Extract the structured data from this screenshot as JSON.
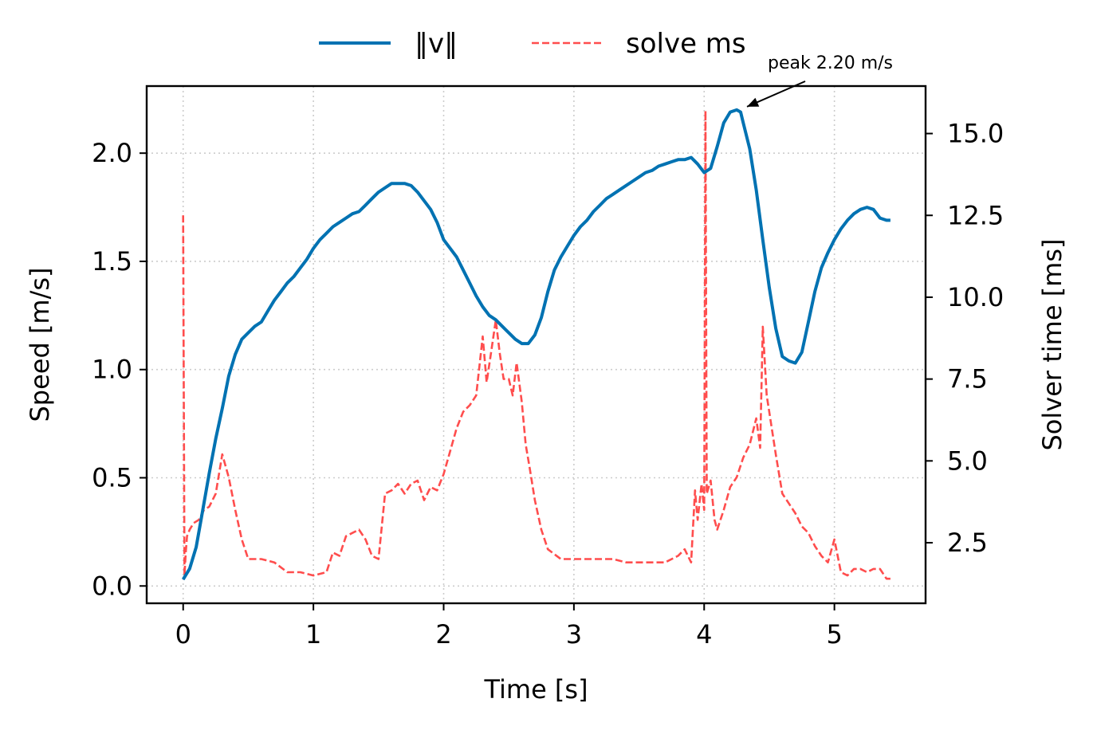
{
  "chart_data": {
    "type": "line",
    "xlabel": "Time [s]",
    "ylabel_left": "Speed [m/s]",
    "ylabel_right": "Solver time [ms]",
    "xlim": [
      -0.28,
      5.7
    ],
    "ylim_left": [
      -0.08,
      2.31
    ],
    "ylim_right": [
      0.65,
      16.45
    ],
    "x_ticks": [
      0,
      1,
      2,
      3,
      4,
      5
    ],
    "x_tick_labels": [
      "0",
      "1",
      "2",
      "3",
      "4",
      "5"
    ],
    "y_left_ticks": [
      0.0,
      0.5,
      1.0,
      1.5,
      2.0
    ],
    "y_left_tick_labels": [
      "0.0",
      "0.5",
      "1.0",
      "1.5",
      "2.0"
    ],
    "y_right_ticks": [
      2.5,
      5.0,
      7.5,
      10.0,
      12.5,
      15.0
    ],
    "y_right_tick_labels": [
      "2.5",
      "5.0",
      "7.5",
      "10.0",
      "12.5",
      "15.0"
    ],
    "grid": true,
    "legend_position": "top-center",
    "annotation": {
      "text": "peak 2.20 m/s",
      "x": 4.28,
      "y": 2.2
    },
    "series": [
      {
        "name": "‖v‖",
        "axis": "left",
        "color": "#0072b2",
        "style": "solid",
        "x": [
          0.0,
          0.05,
          0.1,
          0.15,
          0.2,
          0.25,
          0.3,
          0.35,
          0.4,
          0.45,
          0.5,
          0.55,
          0.6,
          0.65,
          0.7,
          0.75,
          0.8,
          0.85,
          0.9,
          0.95,
          1.0,
          1.05,
          1.1,
          1.15,
          1.2,
          1.25,
          1.3,
          1.35,
          1.4,
          1.45,
          1.5,
          1.55,
          1.6,
          1.65,
          1.7,
          1.75,
          1.8,
          1.85,
          1.9,
          1.95,
          2.0,
          2.05,
          2.1,
          2.15,
          2.2,
          2.25,
          2.3,
          2.35,
          2.4,
          2.45,
          2.5,
          2.55,
          2.6,
          2.65,
          2.7,
          2.75,
          2.8,
          2.85,
          2.9,
          2.95,
          3.0,
          3.05,
          3.1,
          3.15,
          3.2,
          3.25,
          3.3,
          3.35,
          3.4,
          3.45,
          3.5,
          3.55,
          3.6,
          3.65,
          3.7,
          3.75,
          3.8,
          3.85,
          3.9,
          3.95,
          4.0,
          4.05,
          4.1,
          4.15,
          4.2,
          4.25,
          4.28,
          4.3,
          4.35,
          4.4,
          4.45,
          4.5,
          4.55,
          4.6,
          4.65,
          4.7,
          4.75,
          4.8,
          4.85,
          4.9,
          4.95,
          5.0,
          5.05,
          5.1,
          5.15,
          5.2,
          5.25,
          5.3,
          5.35,
          5.4,
          5.43
        ],
        "y": [
          0.03,
          0.08,
          0.18,
          0.35,
          0.52,
          0.68,
          0.82,
          0.97,
          1.07,
          1.14,
          1.17,
          1.2,
          1.22,
          1.27,
          1.32,
          1.36,
          1.4,
          1.43,
          1.47,
          1.51,
          1.56,
          1.6,
          1.63,
          1.66,
          1.68,
          1.7,
          1.72,
          1.73,
          1.76,
          1.79,
          1.82,
          1.84,
          1.86,
          1.86,
          1.86,
          1.85,
          1.82,
          1.78,
          1.74,
          1.68,
          1.6,
          1.56,
          1.52,
          1.46,
          1.4,
          1.34,
          1.29,
          1.25,
          1.23,
          1.2,
          1.17,
          1.14,
          1.12,
          1.12,
          1.16,
          1.24,
          1.36,
          1.46,
          1.52,
          1.57,
          1.62,
          1.66,
          1.69,
          1.73,
          1.76,
          1.79,
          1.81,
          1.83,
          1.85,
          1.87,
          1.89,
          1.91,
          1.92,
          1.94,
          1.95,
          1.96,
          1.97,
          1.97,
          1.98,
          1.95,
          1.91,
          1.93,
          2.03,
          2.14,
          2.19,
          2.2,
          2.19,
          2.14,
          2.02,
          1.83,
          1.6,
          1.38,
          1.19,
          1.06,
          1.04,
          1.03,
          1.08,
          1.22,
          1.36,
          1.47,
          1.54,
          1.6,
          1.65,
          1.69,
          1.72,
          1.74,
          1.75,
          1.74,
          1.7,
          1.69,
          1.69
        ]
      },
      {
        "name": "solve ms",
        "axis": "right",
        "color": "#ff4d4d",
        "style": "dashed",
        "x": [
          0.0,
          0.01,
          0.02,
          0.03,
          0.05,
          0.08,
          0.12,
          0.16,
          0.2,
          0.25,
          0.3,
          0.35,
          0.4,
          0.45,
          0.5,
          0.6,
          0.7,
          0.8,
          0.9,
          1.0,
          1.1,
          1.15,
          1.2,
          1.25,
          1.3,
          1.35,
          1.4,
          1.45,
          1.5,
          1.55,
          1.6,
          1.65,
          1.7,
          1.75,
          1.8,
          1.85,
          1.9,
          1.95,
          2.0,
          2.05,
          2.1,
          2.15,
          2.2,
          2.25,
          2.3,
          2.33,
          2.36,
          2.4,
          2.43,
          2.46,
          2.5,
          2.53,
          2.56,
          2.6,
          2.63,
          2.66,
          2.7,
          2.75,
          2.8,
          2.9,
          3.0,
          3.1,
          3.2,
          3.3,
          3.4,
          3.5,
          3.6,
          3.7,
          3.8,
          3.85,
          3.9,
          3.93,
          3.95,
          3.98,
          4.0,
          4.01,
          4.02,
          4.05,
          4.08,
          4.1,
          4.15,
          4.2,
          4.25,
          4.3,
          4.35,
          4.4,
          4.43,
          4.45,
          4.48,
          4.5,
          4.55,
          4.6,
          4.65,
          4.7,
          4.75,
          4.8,
          4.85,
          4.9,
          4.95,
          5.0,
          5.05,
          5.1,
          5.15,
          5.2,
          5.25,
          5.3,
          5.35,
          5.4,
          5.43
        ],
        "y": [
          12.5,
          1.5,
          2.2,
          2.7,
          2.9,
          3.1,
          3.2,
          3.5,
          3.6,
          4.0,
          5.2,
          4.5,
          3.5,
          2.6,
          2.0,
          2.0,
          1.9,
          1.6,
          1.6,
          1.5,
          1.6,
          2.2,
          2.1,
          2.7,
          2.8,
          2.9,
          2.6,
          2.1,
          2.0,
          4.0,
          4.1,
          4.3,
          4.0,
          4.3,
          4.4,
          3.8,
          4.2,
          4.1,
          4.6,
          5.3,
          6.0,
          6.5,
          6.7,
          7.0,
          8.8,
          7.4,
          8.2,
          9.3,
          8.3,
          7.5,
          7.5,
          7.0,
          8.0,
          6.8,
          5.5,
          4.8,
          3.8,
          2.9,
          2.3,
          2.0,
          2.0,
          2.0,
          2.0,
          2.0,
          1.9,
          1.9,
          1.9,
          1.9,
          2.1,
          2.3,
          1.9,
          4.1,
          3.2,
          4.3,
          3.5,
          15.7,
          4.0,
          4.4,
          3.2,
          2.9,
          3.5,
          4.2,
          4.5,
          5.1,
          5.5,
          6.3,
          5.4,
          9.1,
          7.0,
          6.5,
          5.2,
          4.0,
          3.7,
          3.4,
          3.0,
          2.8,
          2.4,
          2.1,
          1.9,
          2.6,
          1.6,
          1.5,
          1.7,
          1.7,
          1.6,
          1.7,
          1.7,
          1.4,
          1.4
        ]
      }
    ]
  }
}
